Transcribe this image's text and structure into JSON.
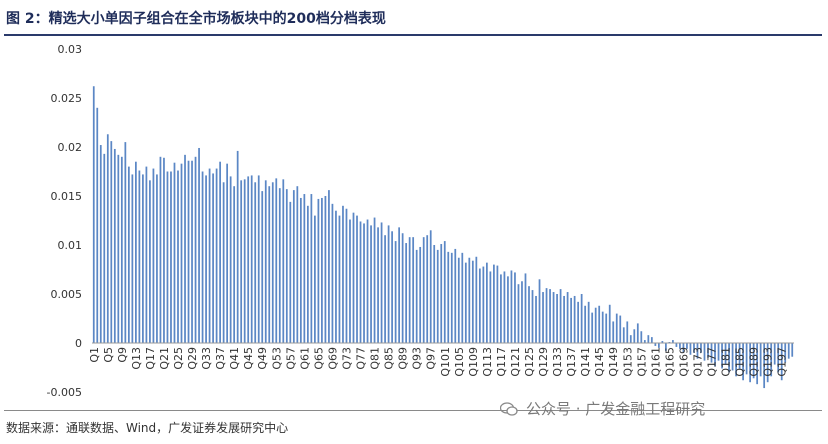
{
  "figure": {
    "title": "图 2：精选大小单因子组合在全市场板块中的200档分档表现",
    "source": "数据来源：通联数据、Wind，广发证券发展研究中心",
    "watermark": "公众号 · 广发金融工程研究",
    "watermark_icon": "wechat-icon"
  },
  "colors": {
    "bar": "#5b87c5",
    "title": "#1f2d5a",
    "rule": "#2a3a6b",
    "axis": "#999999"
  },
  "chart_data": {
    "type": "bar",
    "title": "",
    "xlabel": "",
    "ylabel": "",
    "ylim": [
      -0.005,
      0.03
    ],
    "yticks": [
      -0.005,
      0,
      0.005,
      0.01,
      0.015,
      0.02,
      0.025,
      0.03
    ],
    "ytick_labels": [
      "-0.005",
      "0",
      "0.005",
      "0.01",
      "0.015",
      "0.02",
      "0.025",
      "0.03"
    ],
    "grid": false,
    "legend": "none",
    "category_prefix": "Q",
    "category_count": 200,
    "label_every": 4,
    "values": [
      0.0262,
      0.024,
      0.0202,
      0.0193,
      0.0213,
      0.0206,
      0.0198,
      0.0192,
      0.019,
      0.0205,
      0.018,
      0.0172,
      0.0185,
      0.0176,
      0.0172,
      0.018,
      0.0166,
      0.0178,
      0.0172,
      0.019,
      0.0189,
      0.0175,
      0.0175,
      0.0184,
      0.0176,
      0.0183,
      0.0192,
      0.0186,
      0.0186,
      0.019,
      0.0199,
      0.0175,
      0.0171,
      0.0178,
      0.0173,
      0.0178,
      0.0185,
      0.0164,
      0.0183,
      0.017,
      0.016,
      0.0196,
      0.0166,
      0.0167,
      0.017,
      0.0171,
      0.0164,
      0.0171,
      0.0155,
      0.0166,
      0.016,
      0.0164,
      0.0168,
      0.0158,
      0.0167,
      0.0157,
      0.0144,
      0.0156,
      0.016,
      0.0148,
      0.0152,
      0.014,
      0.0152,
      0.013,
      0.0147,
      0.0148,
      0.015,
      0.0156,
      0.0142,
      0.0135,
      0.013,
      0.014,
      0.0137,
      0.0126,
      0.0133,
      0.013,
      0.0124,
      0.0122,
      0.0126,
      0.012,
      0.0128,
      0.0118,
      0.0123,
      0.011,
      0.012,
      0.0114,
      0.0104,
      0.0118,
      0.0112,
      0.0102,
      0.0108,
      0.0108,
      0.0095,
      0.0098,
      0.0108,
      0.011,
      0.0115,
      0.01,
      0.0095,
      0.0101,
      0.0104,
      0.0093,
      0.0092,
      0.0096,
      0.0087,
      0.0092,
      0.0082,
      0.0087,
      0.0084,
      0.0088,
      0.0076,
      0.0078,
      0.0082,
      0.0073,
      0.008,
      0.0079,
      0.007,
      0.0073,
      0.0068,
      0.0074,
      0.0072,
      0.006,
      0.0063,
      0.0071,
      0.0058,
      0.0054,
      0.0048,
      0.0065,
      0.0052,
      0.0056,
      0.0055,
      0.0052,
      0.005,
      0.0055,
      0.0048,
      0.0052,
      0.0046,
      0.0048,
      0.0042,
      0.005,
      0.0038,
      0.0042,
      0.0031,
      0.0036,
      0.0038,
      0.0032,
      0.003,
      0.0039,
      0.0022,
      0.003,
      0.0028,
      0.0016,
      0.0022,
      0.0008,
      0.0014,
      0.002,
      0.0012,
      0.0003,
      0.0008,
      0.0006,
      -0.0003,
      -0.0005,
      0.0002,
      -0.0008,
      0.0001,
      0.0003,
      -0.0004,
      -0.0006,
      -0.001,
      -0.0006,
      -0.0012,
      -0.001,
      -0.0016,
      -0.001,
      -0.0018,
      -0.0015,
      -0.002,
      -0.0024,
      -0.0018,
      -0.0026,
      -0.0022,
      -0.003,
      -0.0028,
      -0.0034,
      -0.0026,
      -0.0038,
      -0.0032,
      -0.004,
      -0.0036,
      -0.0042,
      -0.0034,
      -0.0046,
      -0.004,
      -0.0034,
      -0.0022,
      -0.003,
      -0.0038,
      -0.002,
      -0.0016,
      -0.0014
    ]
  }
}
